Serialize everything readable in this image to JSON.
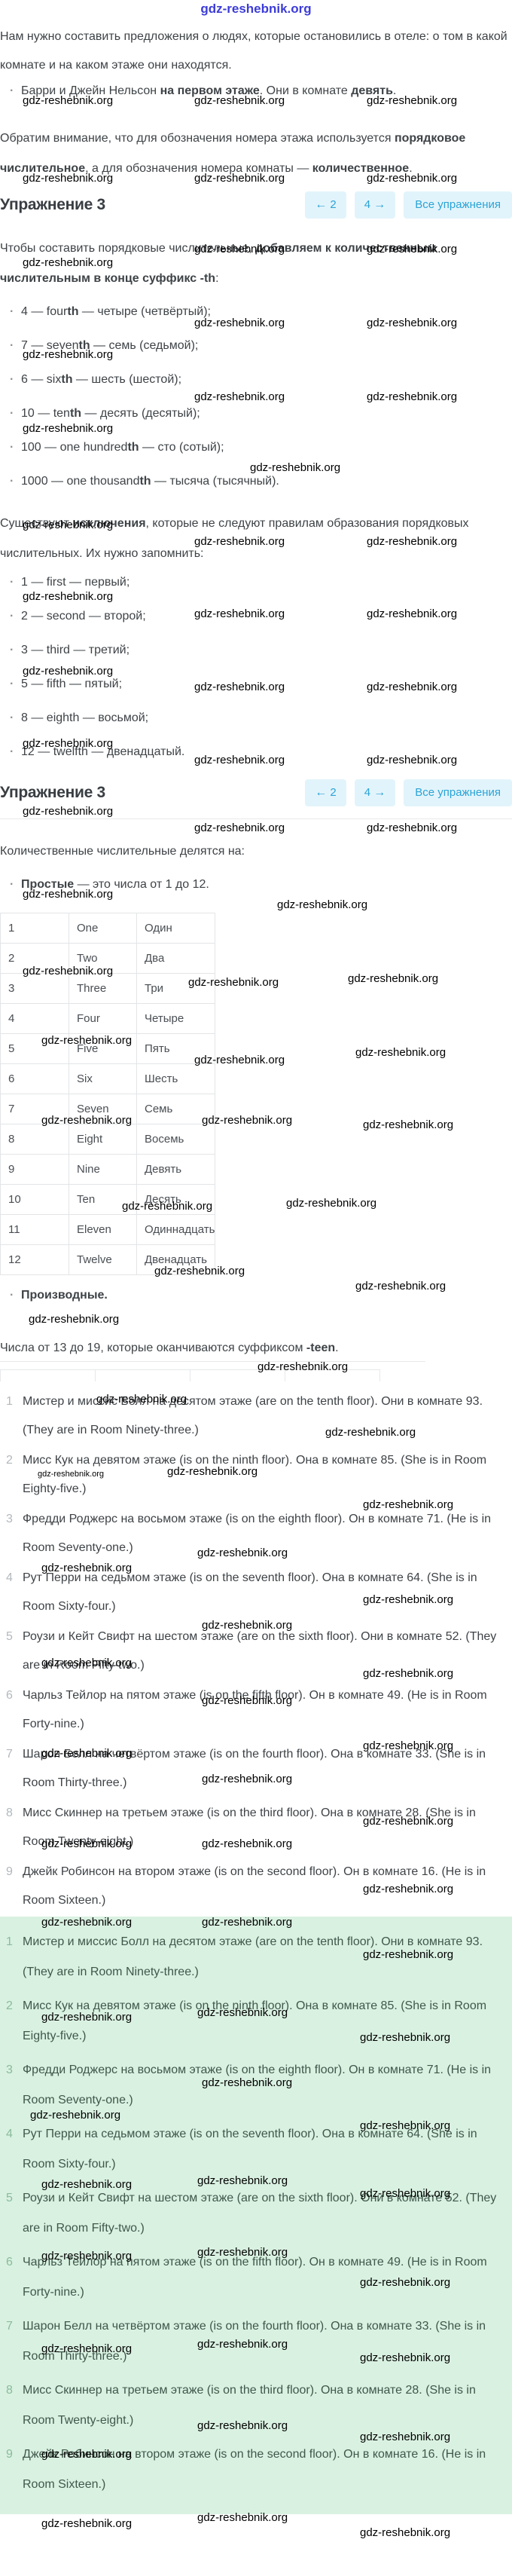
{
  "watermark": {
    "text": "gdz-reshebnik.org",
    "top_color": "#3c3cd8",
    "positions": [
      [
        30,
        125
      ],
      [
        258,
        125
      ],
      [
        487,
        125
      ],
      [
        30,
        228
      ],
      [
        258,
        228
      ],
      [
        487,
        228
      ],
      [
        258,
        322
      ],
      [
        487,
        322
      ],
      [
        30,
        340
      ],
      [
        258,
        420
      ],
      [
        487,
        420
      ],
      [
        30,
        462
      ],
      [
        258,
        518
      ],
      [
        487,
        518
      ],
      [
        30,
        560
      ],
      [
        332,
        612
      ],
      [
        30,
        688
      ],
      [
        258,
        710
      ],
      [
        487,
        710
      ],
      [
        30,
        783
      ],
      [
        258,
        806
      ],
      [
        487,
        806
      ],
      [
        30,
        882
      ],
      [
        258,
        903
      ],
      [
        487,
        903
      ],
      [
        30,
        978
      ],
      [
        258,
        1000
      ],
      [
        487,
        1000
      ],
      [
        30,
        1068
      ],
      [
        258,
        1090
      ],
      [
        487,
        1090
      ],
      [
        30,
        1178
      ],
      [
        368,
        1192
      ],
      [
        30,
        1280
      ],
      [
        250,
        1295
      ],
      [
        462,
        1290
      ],
      [
        55,
        1372
      ],
      [
        472,
        1388
      ],
      [
        258,
        1398
      ],
      [
        55,
        1478
      ],
      [
        268,
        1478
      ],
      [
        482,
        1484
      ],
      [
        162,
        1592
      ],
      [
        380,
        1588
      ],
      [
        205,
        1678
      ],
      [
        472,
        1698
      ],
      [
        38,
        1742
      ],
      [
        342,
        1805
      ],
      [
        128,
        1848
      ],
      [
        432,
        1892
      ],
      [
        50,
        1950,
        11
      ],
      [
        222,
        1944
      ],
      [
        482,
        1988
      ],
      [
        262,
        2052
      ],
      [
        55,
        2072
      ],
      [
        482,
        2114
      ],
      [
        268,
        2148
      ],
      [
        55,
        2198
      ],
      [
        482,
        2212
      ],
      [
        268,
        2248
      ],
      [
        482,
        2308
      ],
      [
        55,
        2318
      ],
      [
        268,
        2352
      ],
      [
        482,
        2408
      ],
      [
        55,
        2438
      ],
      [
        268,
        2438
      ],
      [
        482,
        2498
      ],
      [
        55,
        2542
      ],
      [
        268,
        2542
      ],
      [
        482,
        2585
      ],
      [
        55,
        2668
      ],
      [
        262,
        2662
      ],
      [
        478,
        2695
      ],
      [
        268,
        2755
      ],
      [
        40,
        2798
      ],
      [
        478,
        2812
      ],
      [
        55,
        2890
      ],
      [
        262,
        2885
      ],
      [
        478,
        2902
      ],
      [
        55,
        2985
      ],
      [
        262,
        2980
      ],
      [
        478,
        3020
      ],
      [
        55,
        3108
      ],
      [
        262,
        3102
      ],
      [
        478,
        3120
      ],
      [
        262,
        3210
      ],
      [
        478,
        3225
      ],
      [
        55,
        3248
      ],
      [
        262,
        3332
      ],
      [
        55,
        3340
      ],
      [
        478,
        3352
      ]
    ]
  },
  "sep": " — ",
  "ordinal_suffix": "th",
  "intro": {
    "p1": "Нам нужно составить предложения о людях, которые остановились в отеле: о том в какой комнате и на каком этаже они находятся.",
    "bullet1": {
      "a": "Барри и Джейн Нельсон ",
      "b_bold": "на первом этаже",
      "c": ". Они в комнате ",
      "d_bold": "девять",
      "e": "."
    },
    "p2": {
      "a": "Обратим внимание, что для обозначения номера этажа используется ",
      "b_bold": "порядковое числительное",
      "c": ", а для обозначения номера комнаты — ",
      "d_bold": "количественное",
      "e": "."
    }
  },
  "exercise_header": {
    "title": "Упражнение 3",
    "prev_icon": "←",
    "prev_label": "2",
    "next_label": "4",
    "next_icon": "→",
    "all_label": "Все упражнения"
  },
  "rule_th": {
    "a": "Чтобы составить порядковые числительные, ",
    "b_bold": "добавляем к количественным числительным в конце суффикс -th",
    "c": ":"
  },
  "ordinal_items": [
    {
      "n": "4",
      "base": "four",
      "ru": "четыре (четвёртый);"
    },
    {
      "n": "7",
      "base": "seven",
      "ru": "семь (седьмой);"
    },
    {
      "n": "6",
      "base": "six",
      "ru": "шесть (шестой);"
    },
    {
      "n": "10",
      "base": "ten",
      "ru": "десять (десятый);"
    },
    {
      "n": "100",
      "base": "one hundred",
      "ru": "сто (сотый);"
    },
    {
      "n": "1000",
      "base": "one thousand",
      "ru": "тысяча (тысячный)."
    }
  ],
  "exceptions_intro": {
    "a": "Существуют ",
    "b_bold": "исключения",
    "c": ", которые не следуют правилам образования порядковых числительных. Их нужно запомнить:"
  },
  "exception_items": [
    "1 — first — первый;",
    "2 — second — второй;",
    "3 — third — третий;",
    "5 — fifth — пятый;",
    "8 — eighth — восьмой;",
    "12 — twelfth — двенадцатый."
  ],
  "cardinal_intro": "Количественные числительные делятся на:",
  "simple_bullet": {
    "b_bold": "Простые",
    "rest": " — это числа от 1 до 12."
  },
  "numbers_table": {
    "rows": [
      [
        "1",
        "One",
        "Один"
      ],
      [
        "2",
        "Two",
        "Два"
      ],
      [
        "3",
        "Three",
        "Три"
      ],
      [
        "4",
        "Four",
        "Четыре"
      ],
      [
        "5",
        "Five",
        "Пять"
      ],
      [
        "6",
        "Six",
        "Шесть"
      ],
      [
        "7",
        "Seven",
        "Семь"
      ],
      [
        "8",
        "Eight",
        "Восемь"
      ],
      [
        "9",
        "Nine",
        "Девять"
      ],
      [
        "10",
        "Ten",
        "Десять"
      ],
      [
        "11",
        "Eleven",
        "Одиннадцать"
      ],
      [
        "12",
        "Twelve",
        "Двенадцать"
      ]
    ]
  },
  "derived_bullet": "Производные.",
  "teen_note": {
    "a": "Числа от 13 до 19, которые оканчиваются суффиксом ",
    "b_bold": "-teen",
    "c": "."
  },
  "exercise_items": [
    {
      "n": "1",
      "text": "Мистер и миссис Болл на десятом этаже (are on the tenth floor). Они в комнате 93. (They are in Room Ninety-three.)"
    },
    {
      "n": "2",
      "text": "Мисс Кук на девятом этаже (is on the ninth floor). Она в комнате 85. (She is in Room Eighty-five.)"
    },
    {
      "n": "3",
      "text": "Фредди Роджерс на восьмом этаже (is on the eighth floor). Он в комнате 71. (He is in Room Seventy-one.)"
    },
    {
      "n": "4",
      "text": "Рут Перри на седьмом этаже (is on the seventh floor). Она в комнате 64. (She is in Room Sixty-four.)"
    },
    {
      "n": "5",
      "text": "Роузи и Кейт Свифт на шестом этаже (are on the sixth floor). Они в комнате 52. (They are in Room Fifty-two.)"
    },
    {
      "n": "6",
      "text": "Чарльз Тейлор на пятом этаже (is on the fifth floor). Он в комнате 49. (He is in Room Forty-nine.)"
    },
    {
      "n": "7",
      "text": "Шарон Белл на четвёртом этаже (is on the fourth floor). Она в комнате 33. (She is in Room Thirty-three.)"
    },
    {
      "n": "8",
      "text": "Мисс Скиннер на третьем этаже (is on the third floor). Она в комнате 28. (She is in Room Twenty-eight.)"
    },
    {
      "n": "9",
      "text": "Джейк Робинсон на втором этаже (is on the second floor). Он в комнате 16. (He is in Room Sixteen.)"
    }
  ],
  "answer_items": [
    {
      "n": "1",
      "text": "Мистер и миссис Болл на десятом этаже (are on the tenth floor). Они в комнате 93. (They are in Room Ninety-three.)"
    },
    {
      "n": "2",
      "text": "Мисс Кук на девятом этаже (is on the ninth floor). Она в комнате 85. (She is in Room Eighty-five.)"
    },
    {
      "n": "3",
      "text": "Фредди Роджерс на восьмом этаже (is on the eighth floor). Он в комнате 71. (He is in Room Seventy-one.)"
    },
    {
      "n": "4",
      "text": "Рут Перри на седьмом этаже (is on the seventh floor). Она в комнате 64. (She is in Room Sixty-four.)"
    },
    {
      "n": "5",
      "text": "Роузи и Кейт Свифт на шестом этаже (are on the sixth floor). Они в комнате 52. (They are in Room Fifty-two.)"
    },
    {
      "n": "6",
      "text": "Чарльз Тейлор на пятом этаже (is on the fifth floor). Он в комнате 49. (He is in Room Forty-nine.)"
    },
    {
      "n": "7",
      "text": "Шарон Белл на четвёртом этаже (is on the fourth floor). Она в комнате 33. (She is in Room Thirty-three.)"
    },
    {
      "n": "8",
      "text": "Мисс Скиннер на третьем этаже (is on the third floor). Она в комнате 28. (She is in Room Twenty-eight.)"
    },
    {
      "n": "9",
      "text": "Джейк Робинсон на втором этаже (is on the second floor). Он в комнате 16. (He is in Room Sixteen.)"
    }
  ],
  "colors": {
    "accent_blue": "#2ba3d6",
    "button_bg": "#e2f4fb",
    "answers_bg": "#d9f1e1",
    "answers_text": "#3f584b",
    "body_text": "#3e4347",
    "watermark_blue": "#3c3cd8",
    "table_border": "#e3e5e7"
  }
}
